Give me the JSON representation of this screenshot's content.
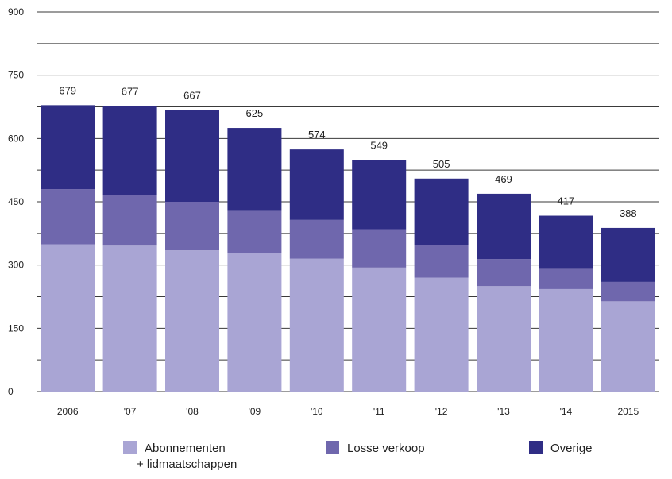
{
  "chart_data": {
    "type": "bar",
    "stacked": true,
    "categories": [
      "2006",
      "'07",
      "'08",
      "'09",
      "'10",
      "'11",
      "'12",
      "'13",
      "'14",
      "2015"
    ],
    "series": [
      {
        "name": "Abonnementen\n+ lidmaatschappen",
        "name_lines": [
          "Abonnementen",
          "+ lidmaatschappen"
        ],
        "color": "#a9a5d4",
        "values": [
          349,
          346,
          335,
          329,
          315,
          294,
          270,
          250,
          243,
          214
        ]
      },
      {
        "name": "Losse verkoop",
        "name_lines": [
          "Losse verkoop"
        ],
        "color": "#6f67ad",
        "values": [
          131,
          120,
          115,
          101,
          92,
          91,
          77,
          64,
          48,
          46
        ]
      },
      {
        "name": "Overige",
        "name_lines": [
          "Overige"
        ],
        "color": "#2f2d85",
        "values": [
          199,
          211,
          217,
          195,
          167,
          164,
          158,
          155,
          126,
          128
        ]
      }
    ],
    "totals": [
      "679",
      "677",
      "667",
      "625",
      "574",
      "549",
      "505",
      "469",
      "417",
      "388"
    ],
    "y_ticks": [
      "0",
      "150",
      "300",
      "450",
      "600",
      "750",
      "900"
    ],
    "ylim": [
      0,
      900
    ],
    "y_step": 75,
    "grid": true,
    "legend_position": "bottom",
    "title": "",
    "xlabel": "",
    "ylabel": ""
  }
}
